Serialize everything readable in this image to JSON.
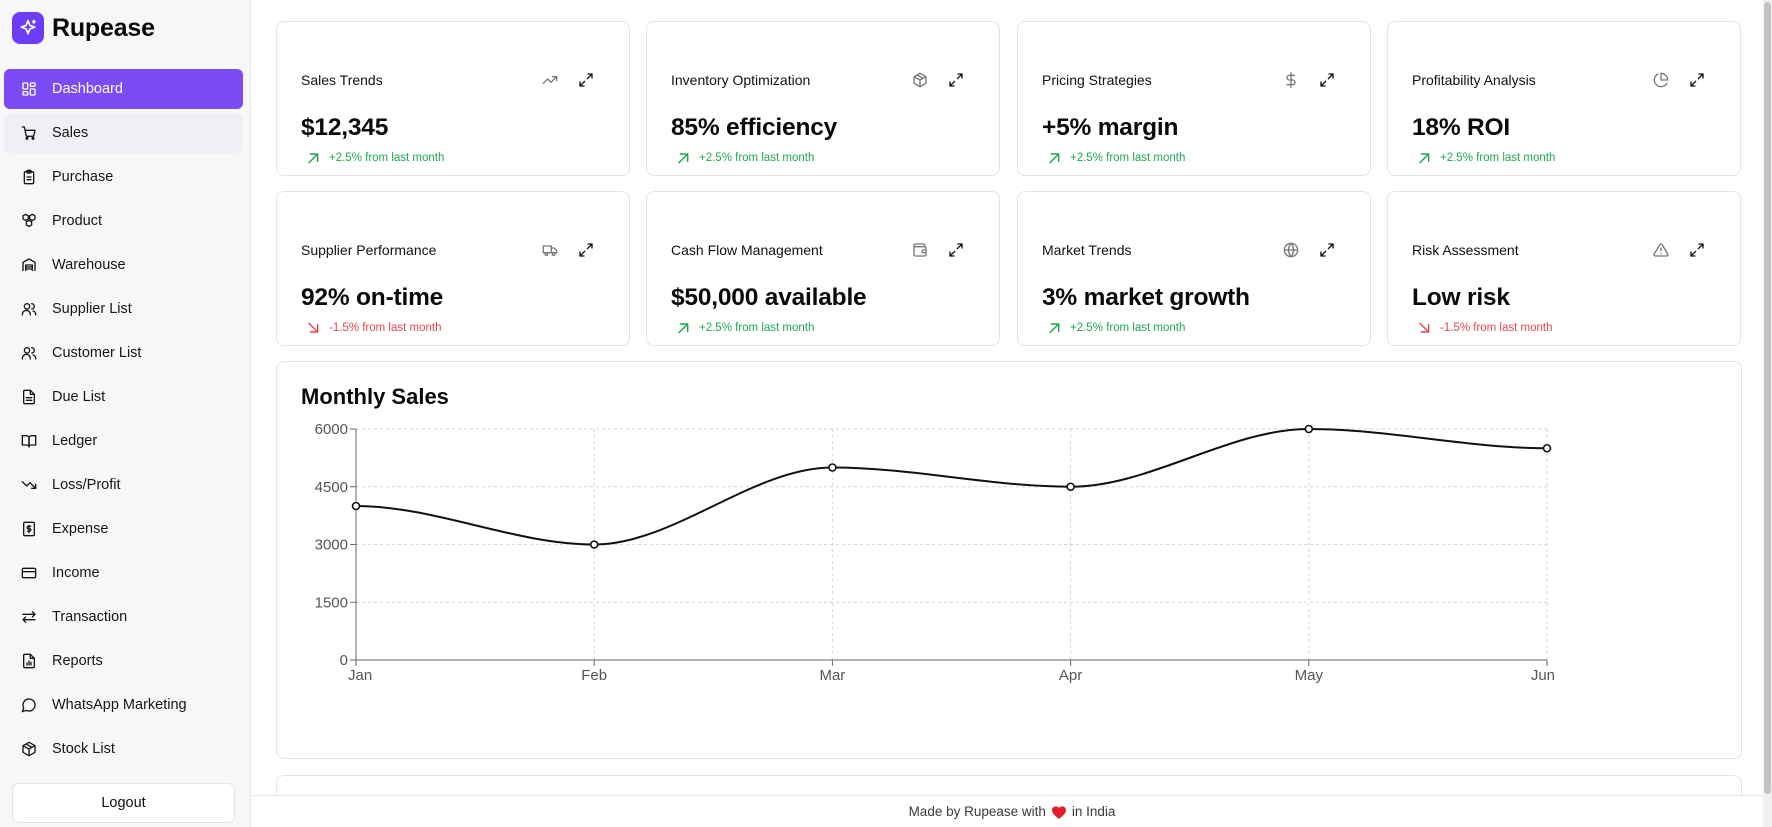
{
  "app": {
    "name": "Rupease"
  },
  "sidebar": {
    "items": [
      {
        "label": "Dashboard",
        "icon": "layout-grid-icon",
        "active": true
      },
      {
        "label": "Sales",
        "icon": "shopping-cart-icon"
      },
      {
        "label": "Purchase",
        "icon": "clipboard-icon"
      },
      {
        "label": "Product",
        "icon": "boxes-icon"
      },
      {
        "label": "Warehouse",
        "icon": "warehouse-icon"
      },
      {
        "label": "Supplier List",
        "icon": "users-icon"
      },
      {
        "label": "Customer List",
        "icon": "users-icon"
      },
      {
        "label": "Due List",
        "icon": "file-text-icon"
      },
      {
        "label": "Ledger",
        "icon": "book-open-icon"
      },
      {
        "label": "Loss/Profit",
        "icon": "trending-down-icon"
      },
      {
        "label": "Expense",
        "icon": "receipt-dollar-icon"
      },
      {
        "label": "Income",
        "icon": "credit-card-icon"
      },
      {
        "label": "Transaction",
        "icon": "arrows-left-right-icon"
      },
      {
        "label": "Reports",
        "icon": "file-chart-icon"
      },
      {
        "label": "WhatsApp Marketing",
        "icon": "message-circle-icon"
      },
      {
        "label": "Stock List",
        "icon": "package-icon"
      }
    ],
    "logout_label": "Logout"
  },
  "cards": [
    {
      "title": "Sales Trends",
      "icon": "trending-up-icon",
      "value": "$12,345",
      "change": "+2.5% from last month",
      "direction": "up"
    },
    {
      "title": "Inventory Optimization",
      "icon": "package-icon",
      "value": "85% efficiency",
      "change": "+2.5% from last month",
      "direction": "up"
    },
    {
      "title": "Pricing Strategies",
      "icon": "dollar-sign-icon",
      "value": "+5% margin",
      "change": "+2.5% from last month",
      "direction": "up"
    },
    {
      "title": "Profitability Analysis",
      "icon": "pie-chart-icon",
      "value": "18% ROI",
      "change": "+2.5% from last month",
      "direction": "up"
    },
    {
      "title": "Supplier Performance",
      "icon": "truck-icon",
      "value": "92% on-time",
      "change": "-1.5% from last month",
      "direction": "down"
    },
    {
      "title": "Cash Flow Management",
      "icon": "wallet-icon",
      "value": "$50,000 available",
      "change": "+2.5% from last month",
      "direction": "up"
    },
    {
      "title": "Market Trends",
      "icon": "globe-icon",
      "value": "3% market growth",
      "change": "+2.5% from last month",
      "direction": "up"
    },
    {
      "title": "Risk Assessment",
      "icon": "alert-triangle-icon",
      "value": "Low risk",
      "change": "-1.5% from last month",
      "direction": "down"
    }
  ],
  "colors": {
    "accent": "#7b4bf6",
    "up": "#22a651",
    "down": "#e5484d",
    "heart": "#e11d2b"
  },
  "chart_data": {
    "type": "line",
    "title": "Monthly Sales",
    "categories": [
      "Jan",
      "Feb",
      "Mar",
      "Apr",
      "May",
      "Jun"
    ],
    "series": [
      {
        "values": [
          4000,
          3000,
          5000,
          4500,
          6000,
          5500
        ]
      }
    ],
    "yticks": [
      "0",
      "1500",
      "3000",
      "4500",
      "6000"
    ],
    "ylim": [
      0,
      6000
    ],
    "grid": true,
    "xlabel": "",
    "ylabel": ""
  },
  "footer": {
    "before": "Made by Rupease with",
    "after": "in India"
  }
}
